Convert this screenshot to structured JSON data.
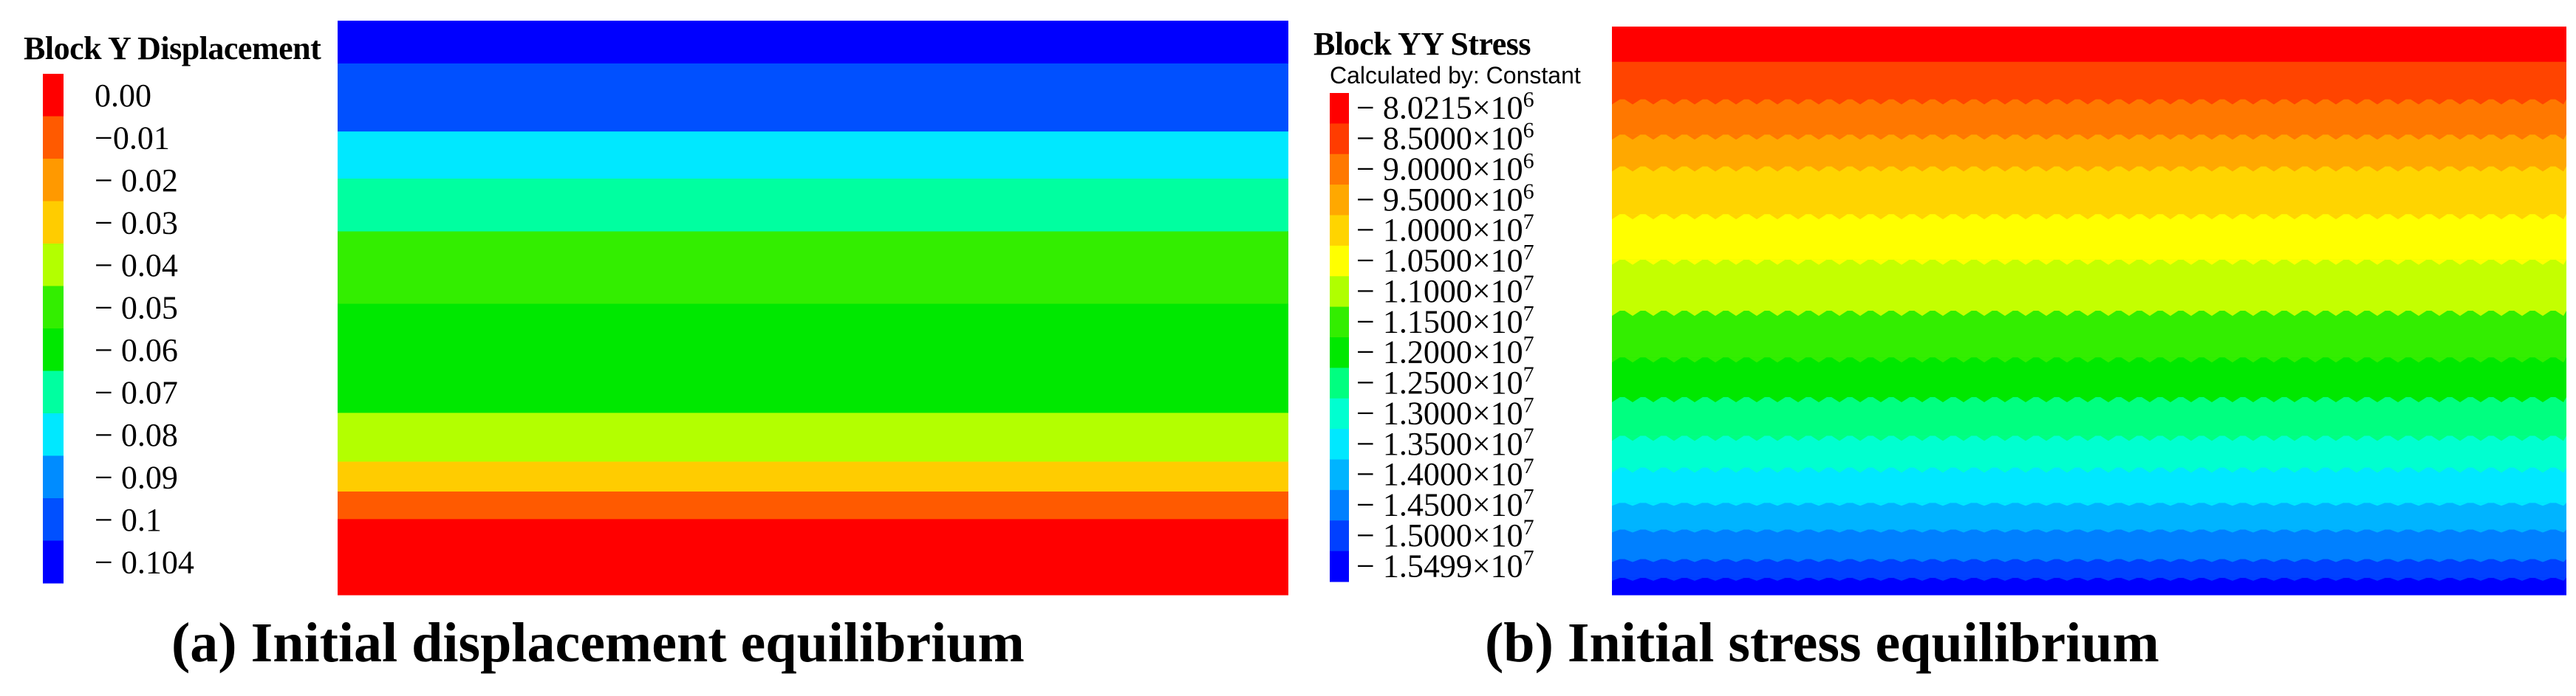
{
  "colors": [
    "#ff0000",
    "#ff5a00",
    "#ff9900",
    "#ffcc00",
    "#b3ff00",
    "#33ee00",
    "#00e800",
    "#00ffa0",
    "#00e8ff",
    "#008cff",
    "#0050ff",
    "#0000ff"
  ],
  "panel_a": {
    "legend_title": "Block Y Displacement",
    "caption": "(a) Initial displacement equilibrium"
  },
  "panel_b": {
    "legend_title": "Block YY Stress",
    "legend_subtitle": "Calculated by: Constant",
    "caption": "(b) Initial stress equilibrium"
  },
  "chart_data": [
    {
      "type": "heatmap",
      "title": "Block Y Displacement",
      "quantity": "Y displacement",
      "legend_levels": [
        "0.00",
        "−0.01",
        "− 0.02",
        "− 0.03",
        "− 0.04",
        "− 0.05",
        "− 0.06",
        "− 0.07",
        "− 0.08",
        "− 0.09",
        "− 0.1",
        "− 0.104"
      ],
      "legend_values": [
        0.0,
        -0.01,
        -0.02,
        -0.03,
        -0.04,
        -0.05,
        -0.06,
        -0.07,
        -0.08,
        -0.09,
        -0.1,
        -0.104
      ],
      "legend_colors": [
        "#ff0000",
        "#ff5a00",
        "#ff9900",
        "#ffcc00",
        "#b3ff00",
        "#33ee00",
        "#00e800",
        "#00ffa0",
        "#00e8ff",
        "#008cff",
        "#0050ff",
        "#0000ff"
      ],
      "bands_top_to_bottom": [
        {
          "value_range": [
            -0.104,
            -0.1
          ],
          "color": "#0000ff"
        },
        {
          "value_range": [
            -0.1,
            -0.09
          ],
          "color": "#0050ff"
        },
        {
          "value_range": [
            -0.09,
            -0.08
          ],
          "color": "#00e8ff"
        },
        {
          "value_range": [
            -0.08,
            -0.07
          ],
          "color": "#00ffa0"
        },
        {
          "value_range": [
            -0.07,
            -0.06
          ],
          "color": "#33ee00"
        },
        {
          "value_range": [
            -0.06,
            -0.05
          ],
          "color": "#00e800"
        },
        {
          "value_range": [
            -0.05,
            -0.04
          ],
          "color": "#b3ff00"
        },
        {
          "value_range": [
            -0.04,
            -0.03
          ],
          "color": "#ffcc00"
        },
        {
          "value_range": [
            -0.03,
            -0.01
          ],
          "color": "#ff5a00"
        },
        {
          "value_range": [
            -0.01,
            0.0
          ],
          "color": "#ff0000"
        }
      ]
    },
    {
      "type": "heatmap",
      "title": "Block YY Stress",
      "subtitle": "Calculated by: Constant",
      "quantity": "YY stress",
      "legend_levels": [
        {
          "mantissa": "8.0215",
          "exp": "6"
        },
        {
          "mantissa": "8.5000",
          "exp": "6"
        },
        {
          "mantissa": "9.0000",
          "exp": "6"
        },
        {
          "mantissa": "9.5000",
          "exp": "6"
        },
        {
          "mantissa": "1.0000",
          "exp": "7"
        },
        {
          "mantissa": "1.0500",
          "exp": "7"
        },
        {
          "mantissa": "1.1000",
          "exp": "7"
        },
        {
          "mantissa": "1.1500",
          "exp": "7"
        },
        {
          "mantissa": "1.2000",
          "exp": "7"
        },
        {
          "mantissa": "1.2500",
          "exp": "7"
        },
        {
          "mantissa": "1.3000",
          "exp": "7"
        },
        {
          "mantissa": "1.3500",
          "exp": "7"
        },
        {
          "mantissa": "1.4000",
          "exp": "7"
        },
        {
          "mantissa": "1.4500",
          "exp": "7"
        },
        {
          "mantissa": "1.5000",
          "exp": "7"
        },
        {
          "mantissa": "1.5499",
          "exp": "7"
        }
      ],
      "legend_values": [
        -8021500.0,
        -8500000.0,
        -9000000.0,
        -9500000.0,
        -10000000.0,
        -10500000.0,
        -11000000.0,
        -11500000.0,
        -12000000.0,
        -12500000.0,
        -13000000.0,
        -13500000.0,
        -14000000.0,
        -14500000.0,
        -15000000.0,
        -15499000.0
      ],
      "legend_colors": [
        "#ff0000",
        "#ff3c00",
        "#ff7800",
        "#ffa800",
        "#ffd400",
        "#ffff00",
        "#b0ff00",
        "#33ee00",
        "#00e800",
        "#00ff80",
        "#00ffd0",
        "#00e8ff",
        "#00b4ff",
        "#0080ff",
        "#0040ff",
        "#0000ff"
      ],
      "bands_top_to_bottom": [
        {
          "color": "#ff0000"
        },
        {
          "color": "#ff4400"
        },
        {
          "color": "#ff7800"
        },
        {
          "color": "#ffa800"
        },
        {
          "color": "#ffd400"
        },
        {
          "color": "#ffff00"
        },
        {
          "color": "#c4ff00"
        },
        {
          "color": "#33ee00"
        },
        {
          "color": "#00e800"
        },
        {
          "color": "#00ff80"
        },
        {
          "color": "#00ffd0"
        },
        {
          "color": "#00e8ff"
        },
        {
          "color": "#00b4ff"
        },
        {
          "color": "#0080ff"
        },
        {
          "color": "#0040ff"
        },
        {
          "color": "#0000ff"
        }
      ]
    }
  ]
}
